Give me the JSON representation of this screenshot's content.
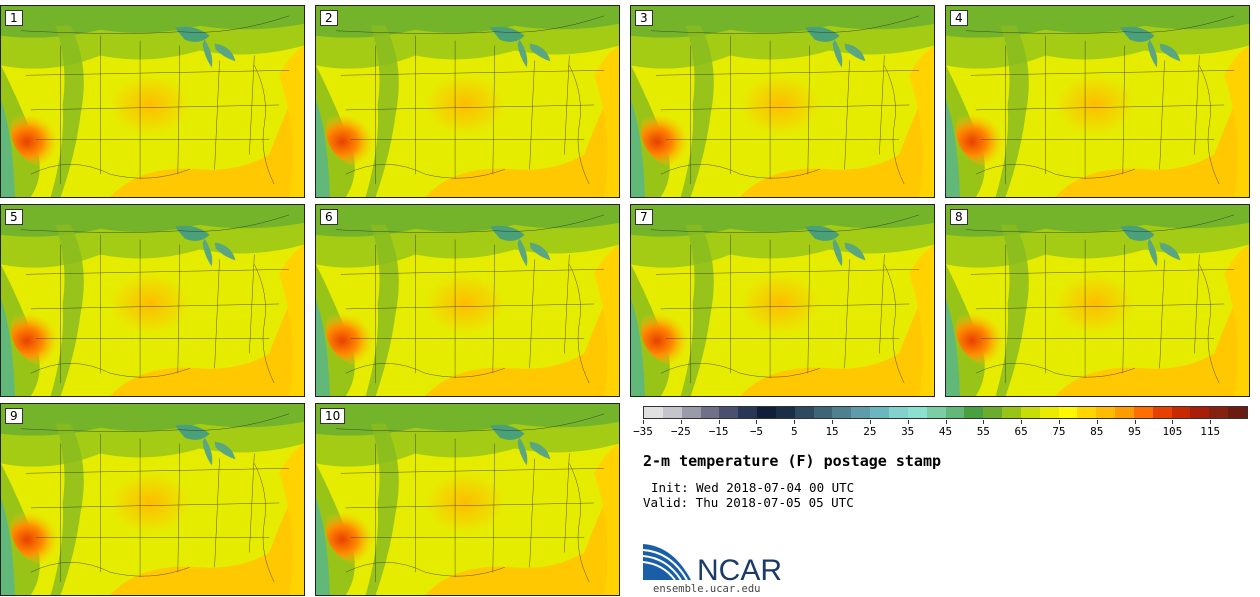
{
  "panels": [
    {
      "label": "1"
    },
    {
      "label": "2"
    },
    {
      "label": "3"
    },
    {
      "label": "4"
    },
    {
      "label": "5"
    },
    {
      "label": "6"
    },
    {
      "label": "7"
    },
    {
      "label": "8"
    },
    {
      "label": "9"
    },
    {
      "label": "10"
    }
  ],
  "colorbar": {
    "colors": [
      "#e0e0e0",
      "#c4c4cc",
      "#9a9aa8",
      "#707088",
      "#4a5070",
      "#283658",
      "#101e3a",
      "#1a2e48",
      "#2e4a60",
      "#3e6478",
      "#4e8090",
      "#5e9caa",
      "#6cb6c0",
      "#84d0cc",
      "#8ce0d0",
      "#7ccca4",
      "#62b878",
      "#48a040",
      "#6cac2c",
      "#98c418",
      "#c8dc08",
      "#eaec00",
      "#fff800",
      "#ffd600",
      "#ffbc00",
      "#ff9c00",
      "#ff6e00",
      "#e84000",
      "#c82a00",
      "#a81e08",
      "#862010",
      "#6a1c10"
    ],
    "ticks": [
      "−35",
      "−25",
      "−15",
      "−5",
      "5",
      "15",
      "25",
      "35",
      "45",
      "55",
      "65",
      "75",
      "85",
      "95",
      "105",
      "115"
    ]
  },
  "title": "2-m temperature (F) postage stamp",
  "init_line": "Init: Wed 2018-07-04 00 UTC",
  "valid_line": "Valid: Thu 2018-07-05 05 UTC",
  "logo": {
    "text": "NCAR",
    "website": "ensemble.ucar.edu"
  }
}
